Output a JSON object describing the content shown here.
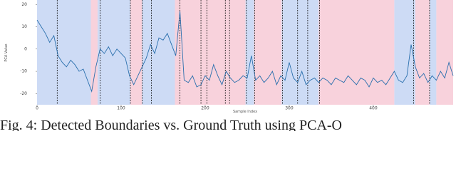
{
  "chart_data": {
    "type": "line",
    "x_label": "Sample Index",
    "y_label": "PCA Value",
    "caption": "Fig. 4: Detected Boundaries vs. Ground Truth using PCA-O",
    "xlim": [
      0,
      495
    ],
    "ylim": [
      -25,
      22
    ],
    "xticks": [
      0,
      100,
      200,
      300,
      400
    ],
    "yticks": [
      20,
      10,
      0,
      -10,
      -20
    ],
    "regions": [
      {
        "start": 0,
        "end": 64,
        "color": "#cddbf5"
      },
      {
        "start": 64,
        "end": 72,
        "color": "#f8d2dc"
      },
      {
        "start": 72,
        "end": 111,
        "color": "#cddbf5"
      },
      {
        "start": 111,
        "end": 125,
        "color": "#f8d2dc"
      },
      {
        "start": 125,
        "end": 164,
        "color": "#cddbf5"
      },
      {
        "start": 164,
        "end": 248,
        "color": "#f8d2dc"
      },
      {
        "start": 248,
        "end": 258,
        "color": "#cddbf5"
      },
      {
        "start": 258,
        "end": 291,
        "color": "#f8d2dc"
      },
      {
        "start": 291,
        "end": 335,
        "color": "#cddbf5"
      },
      {
        "start": 335,
        "end": 425,
        "color": "#f8d2dc"
      },
      {
        "start": 425,
        "end": 450,
        "color": "#cddbf5"
      },
      {
        "start": 450,
        "end": 467,
        "color": "#f8d2dc"
      },
      {
        "start": 467,
        "end": 475,
        "color": "#cddbf5"
      },
      {
        "start": 475,
        "end": 495,
        "color": "#f8d2dc"
      }
    ],
    "boundaries": [
      24,
      75,
      111,
      125,
      136,
      170,
      195,
      202,
      224,
      229,
      249,
      259,
      292,
      310,
      322,
      336,
      448,
      467
    ],
    "series": [
      {
        "color": "#2a6fad",
        "x": [
          0,
          5,
          10,
          15,
          20,
          25,
          30,
          35,
          40,
          45,
          50,
          55,
          60,
          65,
          70,
          75,
          80,
          85,
          90,
          95,
          100,
          105,
          110,
          115,
          120,
          125,
          130,
          135,
          140,
          145,
          150,
          155,
          160,
          165,
          170,
          175,
          180,
          185,
          190,
          195,
          200,
          205,
          210,
          215,
          220,
          225,
          230,
          235,
          240,
          245,
          250,
          255,
          260,
          265,
          270,
          275,
          280,
          285,
          290,
          295,
          300,
          305,
          310,
          315,
          320,
          325,
          330,
          335,
          340,
          345,
          350,
          355,
          360,
          365,
          370,
          375,
          380,
          385,
          390,
          395,
          400,
          405,
          410,
          415,
          420,
          425,
          430,
          435,
          440,
          445,
          450,
          455,
          460,
          465,
          470,
          475,
          480,
          485,
          490,
          495
        ],
        "values": [
          13,
          10,
          7,
          3,
          6,
          -3,
          -6,
          -8,
          -5,
          -7,
          -10,
          -9,
          -14,
          -19,
          -8,
          0,
          -2,
          1,
          -3,
          0,
          -2,
          -4,
          -12,
          -16,
          -12,
          -8,
          -4,
          2,
          -2,
          5,
          4,
          7,
          2,
          -3,
          17,
          -14,
          -15,
          -12,
          -17,
          -16,
          -12,
          -14,
          -7,
          -12,
          -16,
          -10,
          -13,
          -15,
          -14,
          -12,
          -13,
          -3,
          -14,
          -12,
          -15,
          -13,
          -10,
          -16,
          -12,
          -14,
          -6,
          -13,
          -15,
          -10,
          -16,
          -14,
          -13,
          -15,
          -13,
          -14,
          -16,
          -13,
          -14,
          -15,
          -12,
          -14,
          -16,
          -13,
          -14,
          -17,
          -13,
          -15,
          -14,
          -16,
          -13,
          -10,
          -14,
          -15,
          -12,
          2,
          -8,
          -13,
          -11,
          -15,
          -12,
          -14,
          -10,
          -13,
          -6,
          -12
        ]
      }
    ]
  }
}
